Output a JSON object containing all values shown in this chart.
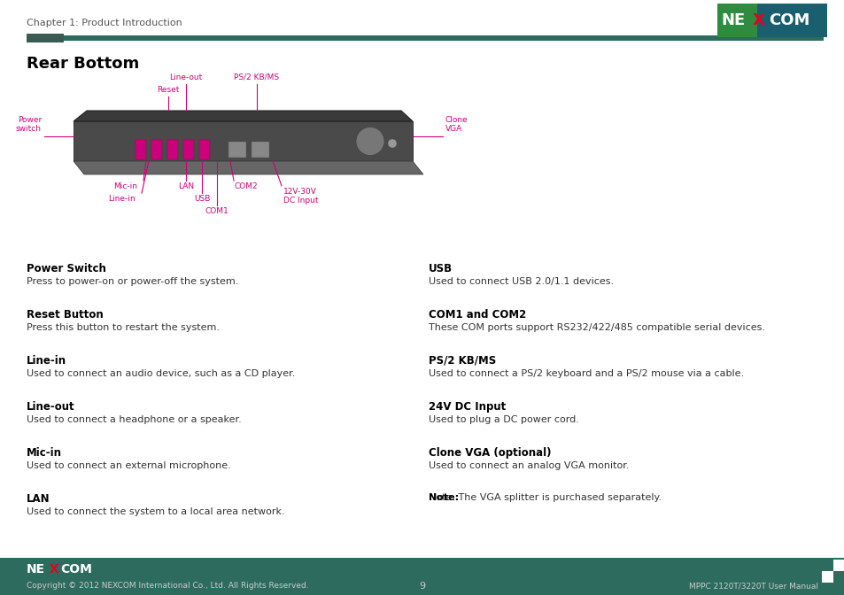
{
  "page_title": "Chapter 1: Product Introduction",
  "section_title": "Rear Bottom",
  "page_number": "9",
  "footer_left": "Copyright © 2012 NEXCOM International Co., Ltd. All Rights Reserved.",
  "footer_right": "MPPC 2120T/3220T User Manual",
  "header_line_color": "#2d6b5e",
  "header_dark_rect_color": "#3d5a52",
  "nexcom_bg_green": "#2e8b40",
  "nexcom_bg_teal": "#1a5f6e",
  "footer_bg_color": "#2d6b5e",
  "body_bg": "#ffffff",
  "label_color": "#cc007a",
  "left_items": [
    {
      "title": "Power Switch",
      "body": "Press to power-on or power-off the system."
    },
    {
      "title": "Reset Button",
      "body": "Press this button to restart the system."
    },
    {
      "title": "Line-in",
      "body": "Used to connect an audio device, such as a CD player."
    },
    {
      "title": "Line-out",
      "body": "Used to connect a headphone or a speaker."
    },
    {
      "title": "Mic-in",
      "body": "Used to connect an external microphone."
    },
    {
      "title": "LAN",
      "body": "Used to connect the system to a local area network."
    }
  ],
  "right_items": [
    {
      "title": "USB",
      "body": "Used to connect USB 2.0/1.1 devices."
    },
    {
      "title": "COM1 and COM2",
      "body": "These COM ports support RS232/422/485 compatible serial devices."
    },
    {
      "title": "PS/2 KB/MS",
      "body": "Used to connect a PS/2 keyboard and a PS/2 mouse via a cable."
    },
    {
      "title": "24V DC Input",
      "body": "Used to plug a DC power cord."
    },
    {
      "title": "Clone VGA (optional)",
      "body": "Used to connect an analog VGA monitor."
    },
    {
      "title": "Note:",
      "body": "The VGA splitter is purchased separately.",
      "note": true
    }
  ]
}
